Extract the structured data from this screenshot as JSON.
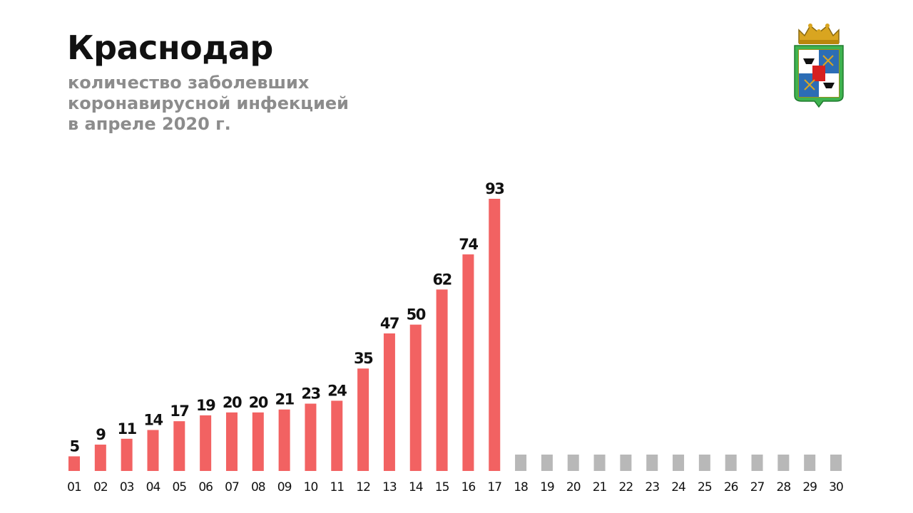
{
  "header": {
    "title": "Краснодар",
    "subtitle_lines": [
      "количество заболевших",
      "коронавирусной инфекцией",
      "в апреле 2020 г."
    ]
  },
  "emblem": {
    "icon": "krasnodar-coat-of-arms-icon"
  },
  "colors": {
    "bar_filled": "#f26262",
    "bar_empty": "#b8b8b8",
    "label": "#111111",
    "subtitle": "#8c8c8c"
  },
  "chart_data": {
    "type": "bar",
    "title": "Краснодар",
    "subtitle": "количество заболевших коронавирусной инфекцией в апреле 2020 г.",
    "categories": [
      "01",
      "02",
      "03",
      "04",
      "05",
      "06",
      "07",
      "08",
      "09",
      "10",
      "11",
      "12",
      "13",
      "14",
      "15",
      "16",
      "17",
      "18",
      "19",
      "20",
      "21",
      "22",
      "23",
      "24",
      "25",
      "26",
      "27",
      "28",
      "29",
      "30"
    ],
    "values": [
      5,
      9,
      11,
      14,
      17,
      19,
      20,
      20,
      21,
      23,
      24,
      35,
      47,
      50,
      62,
      74,
      93,
      null,
      null,
      null,
      null,
      null,
      null,
      null,
      null,
      null,
      null,
      null,
      null,
      null
    ],
    "xlabel": "",
    "ylabel": "",
    "ylim": [
      0,
      100
    ],
    "grid": false,
    "legend": "none",
    "data_labels": true,
    "placeholder_days_note": "days 18–30 shown as grey placeholder bars without values"
  }
}
